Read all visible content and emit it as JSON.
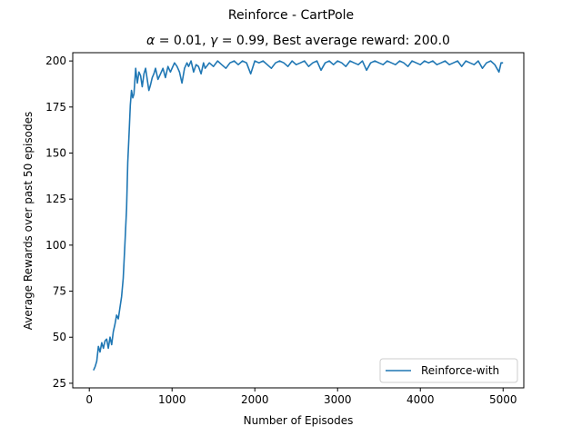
{
  "chart_data": {
    "type": "line",
    "title": "Reinforce - CartPole",
    "subtitle": "α = 0.01, γ = 0.99,  Best average reward: 200.0",
    "subtitle_parts": {
      "alpha_sym": "α",
      "alpha_rest": " = 0.01, ",
      "gamma_sym": "γ",
      "gamma_rest": " = 0.99,  Best average reward: 200.0"
    },
    "xlabel": "Number of Episodes",
    "ylabel": "Average Rewards over past 50 episodes",
    "xlim": [
      -200,
      5250
    ],
    "ylim": [
      22.5,
      204.5
    ],
    "xticks": [
      0,
      1000,
      2000,
      3000,
      4000,
      5000
    ],
    "yticks": [
      25,
      50,
      75,
      100,
      125,
      150,
      175,
      200
    ],
    "grid": false,
    "legend": {
      "position": "lower-right",
      "entries": [
        "Reinforce-with"
      ]
    },
    "series": [
      {
        "name": "Reinforce-with",
        "color": "#1f77b4",
        "x": [
          50,
          70,
          90,
          110,
          130,
          150,
          170,
          190,
          210,
          230,
          250,
          270,
          290,
          310,
          330,
          350,
          370,
          390,
          410,
          430,
          450,
          465,
          480,
          495,
          510,
          525,
          540,
          560,
          580,
          600,
          620,
          640,
          660,
          680,
          700,
          720,
          740,
          760,
          780,
          800,
          830,
          860,
          890,
          920,
          950,
          980,
          1000,
          1030,
          1060,
          1090,
          1120,
          1150,
          1180,
          1200,
          1230,
          1260,
          1290,
          1320,
          1350,
          1380,
          1400,
          1450,
          1500,
          1550,
          1600,
          1650,
          1700,
          1750,
          1800,
          1850,
          1900,
          1950,
          2000,
          2050,
          2100,
          2150,
          2200,
          2250,
          2300,
          2350,
          2400,
          2450,
          2500,
          2550,
          2600,
          2650,
          2700,
          2750,
          2800,
          2850,
          2900,
          2950,
          3000,
          3050,
          3100,
          3150,
          3200,
          3250,
          3300,
          3350,
          3400,
          3450,
          3500,
          3550,
          3600,
          3650,
          3700,
          3750,
          3800,
          3850,
          3900,
          3950,
          4000,
          4050,
          4100,
          4150,
          4200,
          4250,
          4300,
          4350,
          4400,
          4450,
          4500,
          4550,
          4600,
          4650,
          4700,
          4750,
          4800,
          4850,
          4900,
          4950,
          4975,
          5000
        ],
        "values": [
          32,
          34,
          37,
          45,
          42,
          47,
          44,
          48,
          49,
          44,
          50,
          46,
          53,
          57,
          62,
          60,
          66,
          72,
          82,
          100,
          120,
          145,
          160,
          176,
          184,
          180,
          182,
          196,
          188,
          194,
          192,
          186,
          193,
          196,
          190,
          184,
          187,
          191,
          193,
          196,
          190,
          193,
          196,
          191,
          197,
          194,
          196,
          199,
          197,
          194,
          188,
          196,
          199,
          197,
          200,
          194,
          198,
          197,
          193,
          199,
          196,
          199,
          197,
          200,
          198,
          196,
          199,
          200,
          198,
          200,
          199,
          193,
          200,
          199,
          200,
          198,
          196,
          199,
          200,
          199,
          197,
          200,
          198,
          199,
          200,
          197,
          199,
          200,
          195,
          199,
          200,
          198,
          200,
          199,
          197,
          200,
          199,
          198,
          200,
          195,
          199,
          200,
          199,
          198,
          200,
          199,
          198,
          200,
          199,
          197,
          200,
          199,
          198,
          200,
          199,
          200,
          198,
          199,
          200,
          198,
          199,
          200,
          197,
          200,
          199,
          198,
          200,
          196,
          199,
          200,
          198,
          194,
          199,
          199
        ]
      }
    ]
  }
}
